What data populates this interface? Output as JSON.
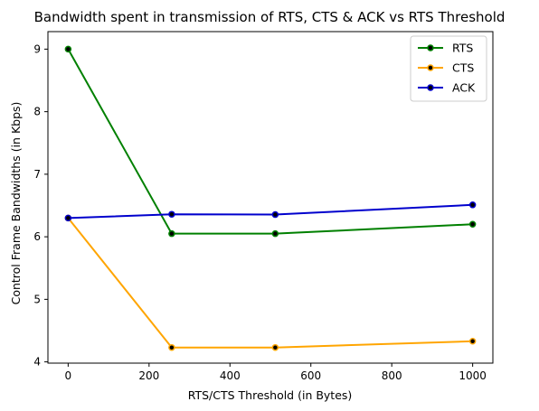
{
  "chart_data": {
    "type": "line",
    "title": "Bandwidth spent in transmission of RTS, CTS & ACK vs RTS Threshold",
    "xlabel": "RTS/CTS Threshold (in Bytes)",
    "ylabel": "Control Frame Bandwidths (in Kbps)",
    "xlim": [
      -50,
      1050
    ],
    "ylim": [
      3.98,
      9.28
    ],
    "xticks": [
      0,
      200,
      400,
      600,
      800,
      1000
    ],
    "yticks": [
      4,
      5,
      6,
      7,
      8,
      9
    ],
    "grid": false,
    "legend": "top-right",
    "x": [
      0,
      256,
      512,
      1000
    ],
    "series": [
      {
        "name": "RTS",
        "color": "#008000",
        "values": [
          9.0,
          6.05,
          6.05,
          6.2
        ]
      },
      {
        "name": "CTS",
        "color": "#ffa500",
        "values": [
          6.3,
          4.23,
          4.23,
          4.33
        ]
      },
      {
        "name": "ACK",
        "color": "#0000cd",
        "values": [
          6.3,
          6.36,
          6.355,
          6.51
        ]
      }
    ]
  }
}
